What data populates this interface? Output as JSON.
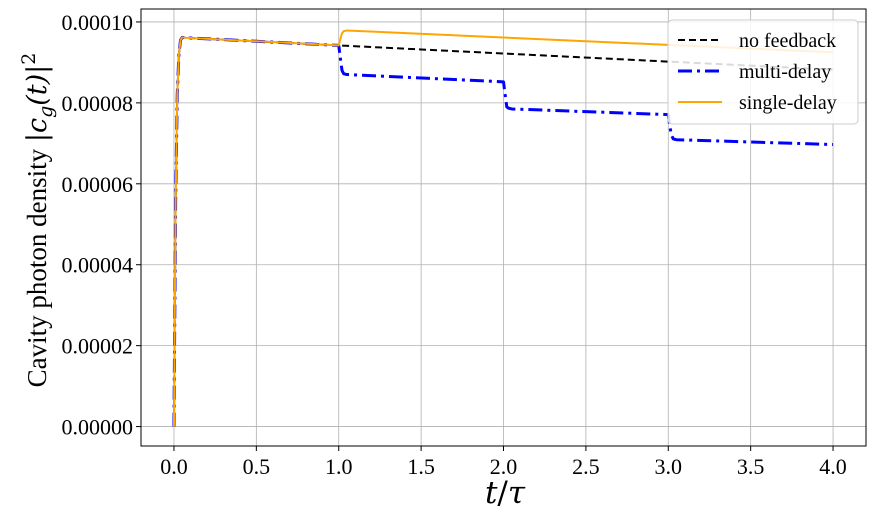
{
  "chart_data": {
    "type": "line",
    "title": "",
    "xlabel": "t/τ",
    "ylabel": "Cavity photon density |c_g(t)|²",
    "ylabel_parts": {
      "text": "Cavity photon density ",
      "symbol": "|c",
      "sub": "g",
      "arg": "(t)|",
      "sup": "2"
    },
    "xlabel_parts": {
      "var": "t",
      "sep": "/",
      "den": "τ"
    },
    "xlim": [
      -0.2,
      4.2
    ],
    "ylim": [
      -4.8e-06,
      0.0001032
    ],
    "x_ticks": [
      0.0,
      0.5,
      1.0,
      1.5,
      2.0,
      2.5,
      3.0,
      3.5,
      4.0
    ],
    "x_tick_labels": [
      "0.0",
      "0.5",
      "1.0",
      "1.5",
      "2.0",
      "2.5",
      "3.0",
      "3.5",
      "4.0"
    ],
    "y_ticks": [
      0.0,
      2e-05,
      4e-05,
      6e-05,
      8e-05,
      0.0001
    ],
    "y_tick_labels": [
      "0.00000",
      "0.00002",
      "0.00004",
      "0.00006",
      "0.00008",
      "0.00010"
    ],
    "grid": true,
    "legend_position": "top-right",
    "series": [
      {
        "name": "no feedback",
        "color": "#000000",
        "style": "dashed",
        "x": [
          0.0,
          0.01,
          0.02,
          0.03,
          0.04,
          0.05,
          0.07,
          1.0,
          2.0,
          3.0,
          4.0
        ],
        "y": [
          0.0,
          5.5e-05,
          8.2e-05,
          9.2e-05,
          9.55e-05,
          9.62e-05,
          9.61e-05,
          9.42e-05,
          9.22e-05,
          9.02e-05,
          8.82e-05
        ]
      },
      {
        "name": "multi-delay",
        "color": "#0000ff",
        "style": "dashdot",
        "x": [
          0.0,
          0.01,
          0.02,
          0.03,
          0.04,
          0.05,
          0.07,
          1.0,
          1.01,
          1.02,
          1.03,
          1.05,
          2.0,
          2.01,
          2.02,
          2.03,
          2.05,
          3.0,
          3.01,
          3.02,
          3.03,
          3.05,
          4.0
        ],
        "y": [
          0.0,
          5.5e-05,
          8.2e-05,
          9.2e-05,
          9.55e-05,
          9.62e-05,
          9.61e-05,
          9.42e-05,
          9.1e-05,
          8.8e-05,
          8.72e-05,
          8.7e-05,
          8.52e-05,
          8.2e-05,
          7.9e-05,
          7.87e-05,
          7.85e-05,
          7.71e-05,
          7.4e-05,
          7.2e-05,
          7.11e-05,
          7.09e-05,
          6.97e-05
        ]
      },
      {
        "name": "single-delay",
        "color": "#ffa500",
        "style": "solid",
        "x": [
          0.0,
          0.01,
          0.02,
          0.03,
          0.04,
          0.05,
          0.07,
          1.0,
          1.01,
          1.02,
          1.03,
          1.05,
          1.1,
          4.0
        ],
        "y": [
          0.0,
          5.5e-05,
          8.2e-05,
          9.2e-05,
          9.55e-05,
          9.62e-05,
          9.61e-05,
          9.42e-05,
          9.58e-05,
          9.72e-05,
          9.77e-05,
          9.79e-05,
          9.78e-05,
          9.25e-05
        ]
      }
    ]
  }
}
